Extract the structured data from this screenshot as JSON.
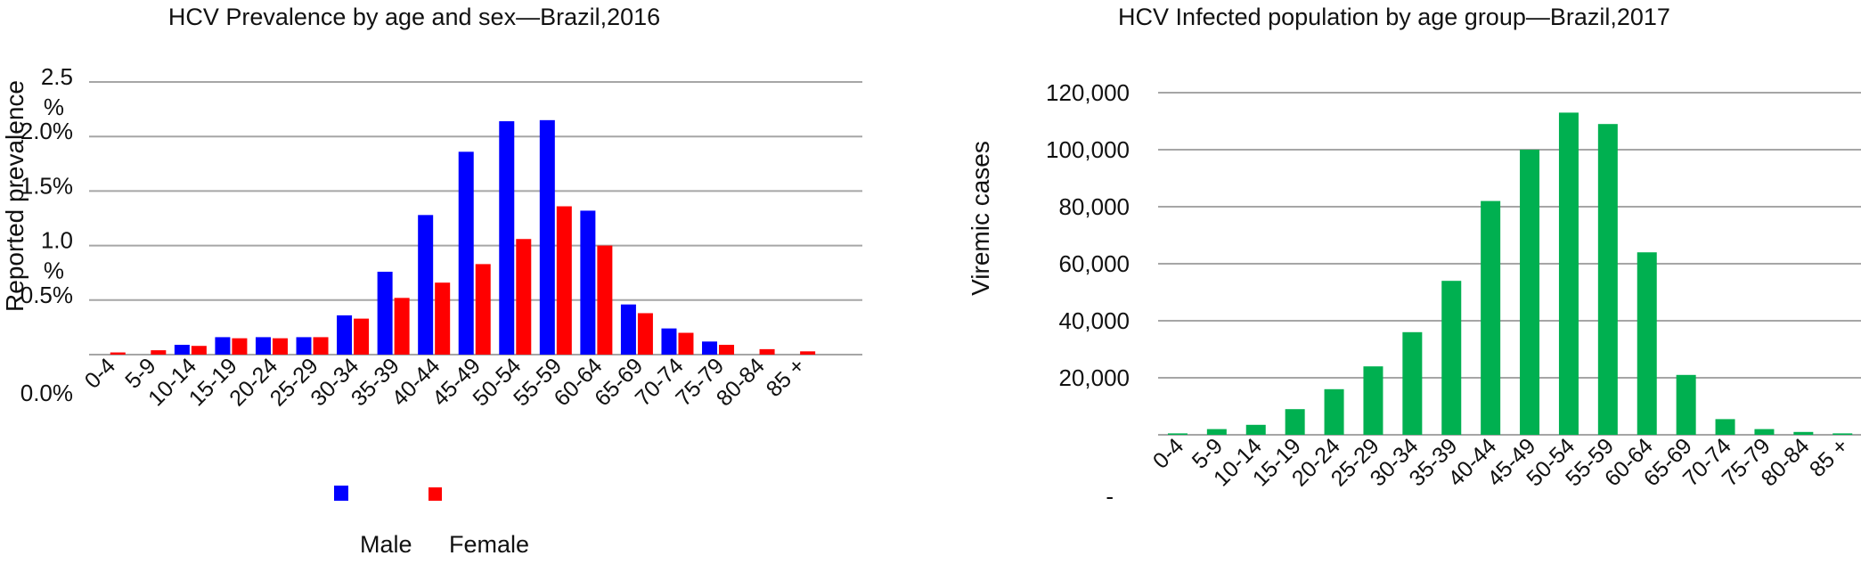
{
  "chart_data": [
    {
      "type": "bar",
      "title": "HCV Prevalence by age and sex—Brazil,2016",
      "xlabel": "",
      "ylabel": "Reported prevalence",
      "ylim": [
        0,
        2.5
      ],
      "grid": true,
      "yticks": [
        {
          "line1": "2.5",
          "line2": "%"
        },
        {
          "line1": "2.0%",
          "line2": ""
        },
        {
          "line1": "1.5%",
          "line2": ""
        },
        {
          "line1": "1.0",
          "line2": "%"
        },
        {
          "line1": "0.5%",
          "line2": ""
        },
        {
          "line1": "0.0%",
          "line2": ""
        }
      ],
      "categories": [
        "0-4",
        "5-9",
        "10-14",
        "15-19",
        "20-24",
        "25-29",
        "30-34",
        "35-39",
        "40-44",
        "45-49",
        "50-54",
        "55-59",
        "60-64",
        "65-69",
        "70-74",
        "75-79",
        "80-84",
        "85 +"
      ],
      "series": [
        {
          "name": "Male",
          "color": "#0000ff",
          "values": [
            0,
            0,
            0.09,
            0.16,
            0.16,
            0.16,
            0.36,
            0.76,
            1.28,
            1.86,
            2.14,
            2.15,
            1.32,
            0.46,
            0.24,
            0.12,
            0,
            0
          ]
        },
        {
          "name": "Female",
          "color": "#ff0000",
          "values": [
            0.02,
            0.04,
            0.08,
            0.15,
            0.15,
            0.16,
            0.33,
            0.52,
            0.66,
            0.83,
            1.06,
            1.36,
            1.0,
            0.38,
            0.2,
            0.09,
            0.05,
            0.03
          ]
        }
      ],
      "legend": {
        "placement": "bottom",
        "items": [
          "Male",
          "Female"
        ]
      }
    },
    {
      "type": "bar",
      "title": "HCV Infected population by age group—Brazil,2017",
      "xlabel": "",
      "ylabel": "Viremic cases",
      "ylim": [
        0,
        120000
      ],
      "grid": true,
      "yticks": [
        "120,000",
        "100,000",
        "80,000",
        "60,000",
        "40,000",
        "20,000",
        "-"
      ],
      "categories": [
        "0-4",
        "5-9",
        "10-14",
        "15-19",
        "20-24",
        "25-29",
        "30-34",
        "35-39",
        "40-44",
        "45-49",
        "50-54",
        "55-59",
        "60-64",
        "65-69",
        "70-74",
        "75-79",
        "80-84",
        "85 +"
      ],
      "series": [
        {
          "name": "",
          "color": "#00b050",
          "values": [
            500,
            2000,
            3500,
            9000,
            16000,
            24000,
            36000,
            54000,
            82000,
            100000,
            113000,
            109000,
            64000,
            21000,
            5500,
            2000,
            1000,
            500
          ]
        }
      ],
      "legend": {
        "placement": "none",
        "items": []
      }
    }
  ]
}
